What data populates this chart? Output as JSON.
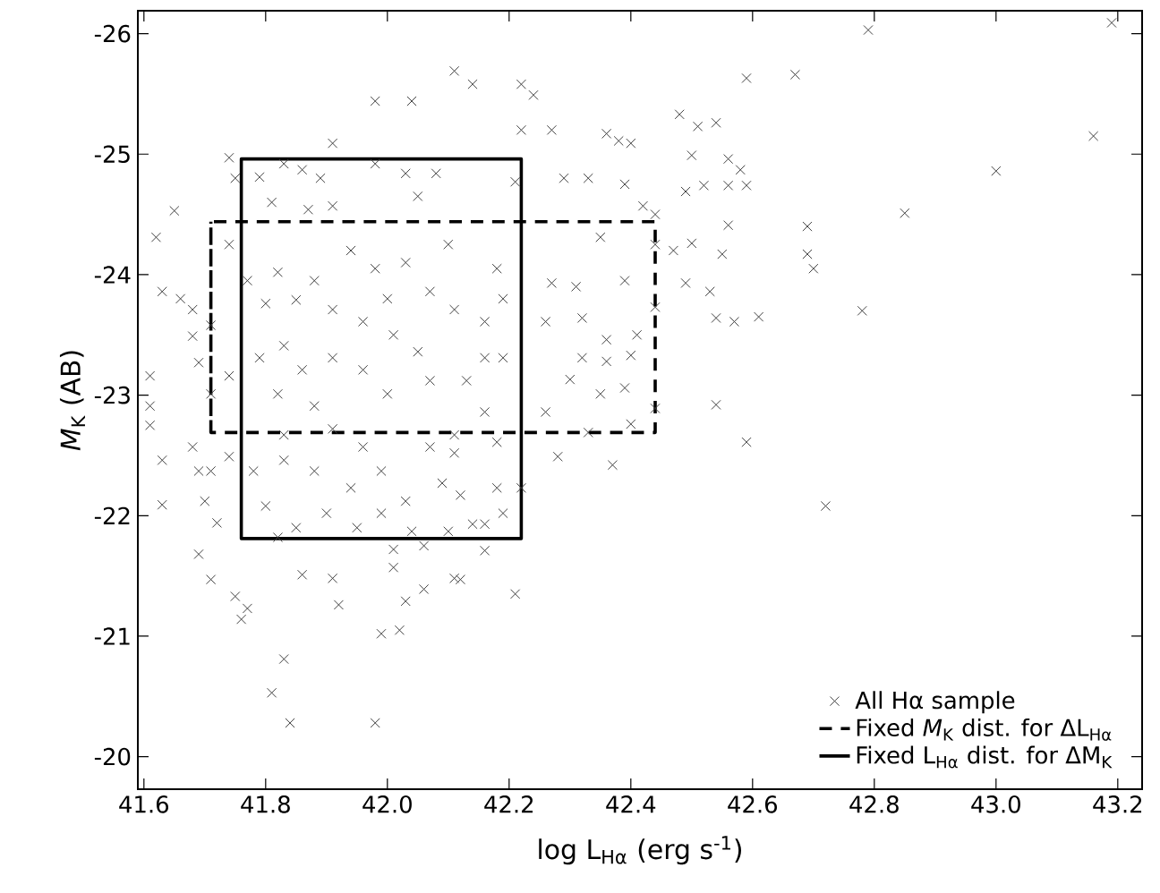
{
  "chart_data": {
    "type": "scatter",
    "xlabel": "log L$_{Hα}$ (erg s$^{-1}$)",
    "ylabel": "*M*$_{K}$ (AB)",
    "xlim": [
      41.59,
      43.24
    ],
    "ylim": [
      -19.73,
      -26.19
    ],
    "xticks": [
      41.6,
      41.8,
      {
        "value": 42,
        "label": "42.0"
      },
      42.2,
      42.4,
      42.6,
      42.8,
      {
        "value": 43,
        "label": "43.0"
      },
      43.2
    ],
    "yticks": [
      -26,
      -25,
      -24,
      -23,
      -22,
      -21,
      -20
    ],
    "legend": "bottom right",
    "series": [
      {
        "name": "All Hα sample",
        "type": "scatter",
        "marker": "cross",
        "color": "#404040",
        "x": [
          42.79,
          42.67,
          43.16,
          43.0,
          42.85,
          42.69,
          42.69,
          42.7,
          42.78,
          42.72,
          43.19,
          42.11,
          42.14,
          42.22,
          42.24,
          42.59,
          42.48,
          42.51,
          42.54,
          42.5,
          42.56,
          42.58,
          42.49,
          42.52,
          42.56,
          42.59,
          42.56,
          42.5,
          42.55,
          42.49,
          42.53,
          42.54,
          42.57,
          42.61,
          42.54,
          42.59,
          42.38,
          42.36,
          42.4,
          42.42,
          42.44,
          42.39,
          42.47,
          42.44,
          42.39,
          42.44,
          42.41,
          42.4,
          42.39,
          42.35,
          42.44,
          42.4,
          42.37,
          42.28,
          42.33,
          42.27,
          42.29,
          42.33,
          42.35,
          42.31,
          42.32,
          42.36,
          42.36,
          42.32,
          42.3,
          42.26,
          42.21,
          42.16,
          42.11,
          42.22,
          42.21,
          42.27,
          42.26,
          42.16,
          42.19,
          42.18,
          42.16,
          42.22,
          42.19,
          42.18,
          42.19,
          42.16,
          42.16,
          42.13,
          42.18,
          42.11,
          42.12,
          42.14,
          41.98,
          42.04,
          41.91,
          41.74,
          41.75,
          41.79,
          41.83,
          41.86,
          41.89,
          41.81,
          41.87,
          41.91,
          41.98,
          42.03,
          42.05,
          42.08,
          41.65,
          41.62,
          41.63,
          41.61,
          41.61,
          41.66,
          41.68,
          41.68,
          41.71,
          41.69,
          41.71,
          41.74,
          41.74,
          41.77,
          41.82,
          41.8,
          41.85,
          41.88,
          41.91,
          41.83,
          41.79,
          41.86,
          41.91,
          41.82,
          41.88,
          41.94,
          41.98,
          42.0,
          42.03,
          42.07,
          41.96,
          42.01,
          42.05,
          41.96,
          42.0,
          42.07,
          42.1,
          42.11,
          41.61,
          41.63,
          41.63,
          41.69,
          41.7,
          41.72,
          41.69,
          41.71,
          41.75,
          41.77,
          41.76,
          41.83,
          41.81,
          41.84,
          41.86,
          41.91,
          41.92,
          41.98,
          41.99,
          42.02,
          42.03,
          42.06,
          42.01,
          42.12,
          41.68,
          41.71,
          41.74,
          41.78,
          41.8,
          41.82,
          41.85,
          41.83,
          41.88,
          41.9,
          41.94,
          41.95,
          41.99,
          41.99,
          42.03,
          42.04,
          42.09,
          42.1,
          42.01,
          42.06,
          41.83,
          41.91,
          41.96,
          42.07,
          42.11
        ],
        "values": [
          -26.03,
          -25.66,
          -25.15,
          -24.86,
          -24.51,
          -24.4,
          -24.17,
          -24.05,
          -23.7,
          -22.08,
          -26.09,
          -25.69,
          -25.58,
          -25.58,
          -25.49,
          -25.63,
          -25.33,
          -25.23,
          -25.26,
          -24.99,
          -24.96,
          -24.87,
          -24.69,
          -24.74,
          -24.74,
          -24.74,
          -24.41,
          -24.26,
          -24.17,
          -23.93,
          -23.86,
          -23.64,
          -23.61,
          -23.65,
          -22.92,
          -22.61,
          -25.11,
          -25.17,
          -25.09,
          -24.57,
          -24.5,
          -24.75,
          -24.2,
          -24.25,
          -23.95,
          -23.73,
          -23.5,
          -23.33,
          -23.06,
          -23.01,
          -22.89,
          -22.76,
          -22.42,
          -22.49,
          -22.69,
          -25.2,
          -24.8,
          -24.8,
          -24.31,
          -23.9,
          -23.64,
          -23.46,
          -23.28,
          -23.31,
          -23.13,
          -22.86,
          -21.35,
          -21.71,
          -21.48,
          -25.2,
          -24.77,
          -23.93,
          -23.61,
          -22.86,
          -23.31,
          -22.23,
          -21.93,
          -22.23,
          -22.02,
          -24.05,
          -23.8,
          -23.61,
          -23.31,
          -23.12,
          -22.61,
          -22.52,
          -22.17,
          -21.93,
          -25.44,
          -25.44,
          -25.09,
          -24.97,
          -24.8,
          -24.81,
          -24.92,
          -24.87,
          -24.8,
          -24.6,
          -24.54,
          -24.57,
          -24.92,
          -24.84,
          -24.65,
          -24.84,
          -24.53,
          -24.31,
          -23.86,
          -23.16,
          -22.91,
          -23.8,
          -23.71,
          -23.49,
          -23.58,
          -23.27,
          -23.01,
          -23.16,
          -24.25,
          -23.95,
          -24.02,
          -23.76,
          -23.79,
          -23.95,
          -23.71,
          -23.41,
          -23.31,
          -23.21,
          -23.31,
          -23.01,
          -22.91,
          -24.2,
          -24.05,
          -23.8,
          -24.1,
          -23.86,
          -23.61,
          -23.5,
          -23.36,
          -23.21,
          -23.01,
          -23.12,
          -24.25,
          -23.71,
          -22.75,
          -22.46,
          -22.09,
          -22.37,
          -22.12,
          -21.94,
          -21.68,
          -21.47,
          -21.33,
          -21.23,
          -21.14,
          -20.81,
          -20.53,
          -20.28,
          -21.51,
          -21.48,
          -21.26,
          -20.28,
          -21.02,
          -21.05,
          -21.29,
          -21.39,
          -21.57,
          -21.47,
          -22.57,
          -22.37,
          -22.49,
          -22.37,
          -22.08,
          -21.82,
          -21.9,
          -22.46,
          -22.37,
          -22.02,
          -22.23,
          -21.9,
          -22.02,
          -22.37,
          -22.12,
          -21.87,
          -22.27,
          -21.87,
          -21.72,
          -21.75,
          -22.67,
          -22.72,
          -22.57,
          -22.57,
          -22.67
        ]
      },
      {
        "name": "Fixed *M*$_{K}$ dist. for ΔL$_{Hα}$",
        "type": "line",
        "line_style": "dashed",
        "color": "#000000",
        "x": [
          41.71,
          41.71,
          42.44,
          42.44,
          41.71,
          41.71
        ],
        "values": [
          -22.69,
          -24.44,
          -24.44,
          -22.69,
          -22.69,
          -24.44
        ]
      },
      {
        "name": "Fixed L$_{Hα}$ dist. for ΔM$_{K}$",
        "type": "line",
        "line_style": "solid",
        "color": "#000000",
        "x": [
          41.76,
          41.76,
          42.22,
          42.22,
          41.76,
          41.76
        ],
        "values": [
          -21.81,
          -24.96,
          -24.96,
          -21.81,
          -21.81,
          -24.96
        ]
      }
    ]
  }
}
